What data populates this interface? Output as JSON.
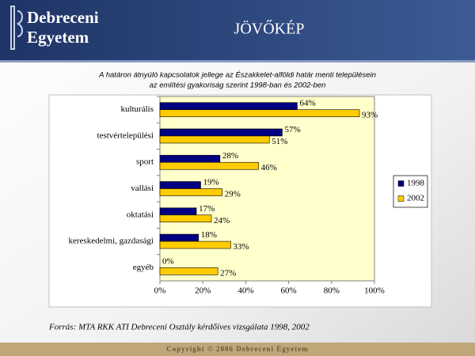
{
  "header": {
    "logo": [
      "Debreceni",
      "Egyetem"
    ]
  },
  "footer": "Copyright © 2006 Debreceni Egyetem",
  "chart_data": {
    "type": "hbar",
    "title": "JÖVŐKÉP",
    "subtitle": [
      "A határon átnyúló kapcsolatok jellege az Északkelet-alföldi határ menti településein",
      "az említési gyakoriság szerint 1998-ban és 2002-ben"
    ],
    "categories": [
      "kulturális",
      "testvértelepülési",
      "sport",
      "vallási",
      "oktatási",
      "kereskedelmi, gazdasági",
      "egyéb"
    ],
    "series": [
      {
        "name": "1998",
        "color": "#000080",
        "values": [
          64,
          57,
          28,
          19,
          17,
          18,
          0
        ],
        "value_labels": [
          "64%",
          "57%",
          "28%",
          "19%",
          "17%",
          "18%",
          "0%"
        ]
      },
      {
        "name": "2002",
        "color": "#ffcc00",
        "values": [
          93,
          51,
          46,
          29,
          24,
          33,
          27
        ],
        "value_labels": [
          "93%",
          "51%",
          "46%",
          "29%",
          "24%",
          "33%",
          "27%"
        ]
      }
    ],
    "xlim": [
      0,
      100
    ],
    "xticks": [
      {
        "value": 0,
        "label": "0%"
      },
      {
        "value": 20,
        "label": "20%"
      },
      {
        "value": 40,
        "label": "40%"
      },
      {
        "value": 60,
        "label": "60%"
      },
      {
        "value": 80,
        "label": "80%"
      },
      {
        "value": 100,
        "label": "100%"
      }
    ],
    "grid": false,
    "legend": "right",
    "source": "Forrás: MTA RKK ATI Debreceni Osztály kérdőíves vizsgálata 1998, 2002"
  }
}
